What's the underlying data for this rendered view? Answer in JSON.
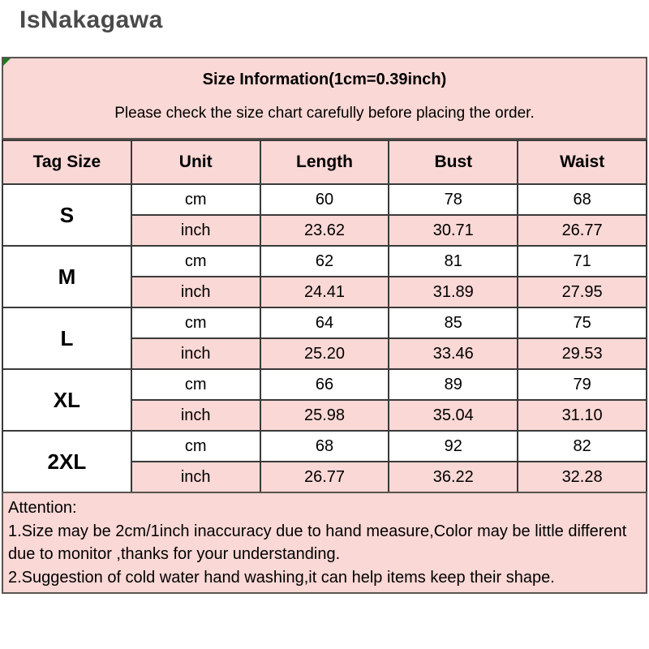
{
  "watermark": "IsNakagawa",
  "header": {
    "title": "Size Information(1cm=0.39inch)",
    "subtitle": "Please check the size chart carefully before placing the order."
  },
  "chart_data": {
    "type": "table",
    "title": "Size Information(1cm=0.39inch)",
    "columns": [
      "Tag Size",
      "Unit",
      "Length",
      "Bust",
      "Waist"
    ],
    "unit_labels": [
      "cm",
      "inch"
    ],
    "sizes": [
      {
        "size": "S",
        "cm": [
          "60",
          "78",
          "68"
        ],
        "inch": [
          "23.62",
          "30.71",
          "26.77"
        ]
      },
      {
        "size": "M",
        "cm": [
          "62",
          "81",
          "71"
        ],
        "inch": [
          "24.41",
          "31.89",
          "27.95"
        ]
      },
      {
        "size": "L",
        "cm": [
          "64",
          "85",
          "75"
        ],
        "inch": [
          "25.20",
          "33.46",
          "29.53"
        ]
      },
      {
        "size": "XL",
        "cm": [
          "66",
          "89",
          "79"
        ],
        "inch": [
          "25.98",
          "35.04",
          "31.10"
        ]
      },
      {
        "size": "2XL",
        "cm": [
          "68",
          "92",
          "82"
        ],
        "inch": [
          "26.77",
          "36.22",
          "32.28"
        ]
      }
    ]
  },
  "attention": {
    "heading": "Attention:",
    "note1": "1.Size may be 2cm/1inch inaccuracy due to hand measure,Color may be little different due to monitor ,thanks for your understanding.",
    "note2": "2.Suggestion of cold water hand washing,it can help items keep their shape."
  },
  "colors": {
    "pink": "#fad8d5",
    "box_border": "#5a5450",
    "grid": "#3a3a3a",
    "watermark_gray": "#4a4a4a",
    "corner_flag_green": "#1e7a1e"
  }
}
